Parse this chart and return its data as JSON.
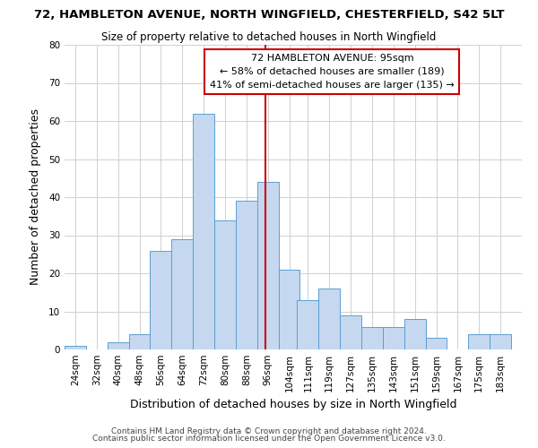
{
  "title": "72, HAMBLETON AVENUE, NORTH WINGFIELD, CHESTERFIELD, S42 5LT",
  "subtitle": "Size of property relative to detached houses in North Wingfield",
  "xlabel": "Distribution of detached houses by size in North Wingfield",
  "ylabel": "Number of detached properties",
  "footnote1": "Contains HM Land Registry data © Crown copyright and database right 2024.",
  "footnote2": "Contains public sector information licensed under the Open Government Licence v3.0.",
  "bar_labels": [
    "24sqm",
    "32sqm",
    "40sqm",
    "48sqm",
    "56sqm",
    "64sqm",
    "72sqm",
    "80sqm",
    "88sqm",
    "96sqm",
    "104sqm",
    "111sqm",
    "119sqm",
    "127sqm",
    "135sqm",
    "143sqm",
    "151sqm",
    "159sqm",
    "167sqm",
    "175sqm",
    "183sqm"
  ],
  "bar_values": [
    1,
    0,
    2,
    4,
    26,
    29,
    62,
    34,
    39,
    44,
    21,
    13,
    16,
    9,
    6,
    6,
    8,
    3,
    0,
    4,
    4
  ],
  "bar_color": "#c5d8f0",
  "bar_edgecolor": "#5a9fd4",
  "property_line_x": 95,
  "property_line_color": "#cc0000",
  "annotation_title": "72 HAMBLETON AVENUE: 95sqm",
  "annotation_line1": "← 58% of detached houses are smaller (189)",
  "annotation_line2": "41% of semi-detached houses are larger (135) →",
  "annotation_box_edgecolor": "#cc0000",
  "ylim": [
    0,
    80
  ],
  "xlim_left": 20,
  "xlim_right": 191,
  "bin_width": 8,
  "title_fontsize": 9.5,
  "subtitle_fontsize": 8.5,
  "axis_label_fontsize": 9,
  "tick_fontsize": 7.5,
  "annotation_fontsize": 8,
  "footnote_fontsize": 6.5,
  "background_color": "#ffffff",
  "grid_color": "#d0d0d0"
}
